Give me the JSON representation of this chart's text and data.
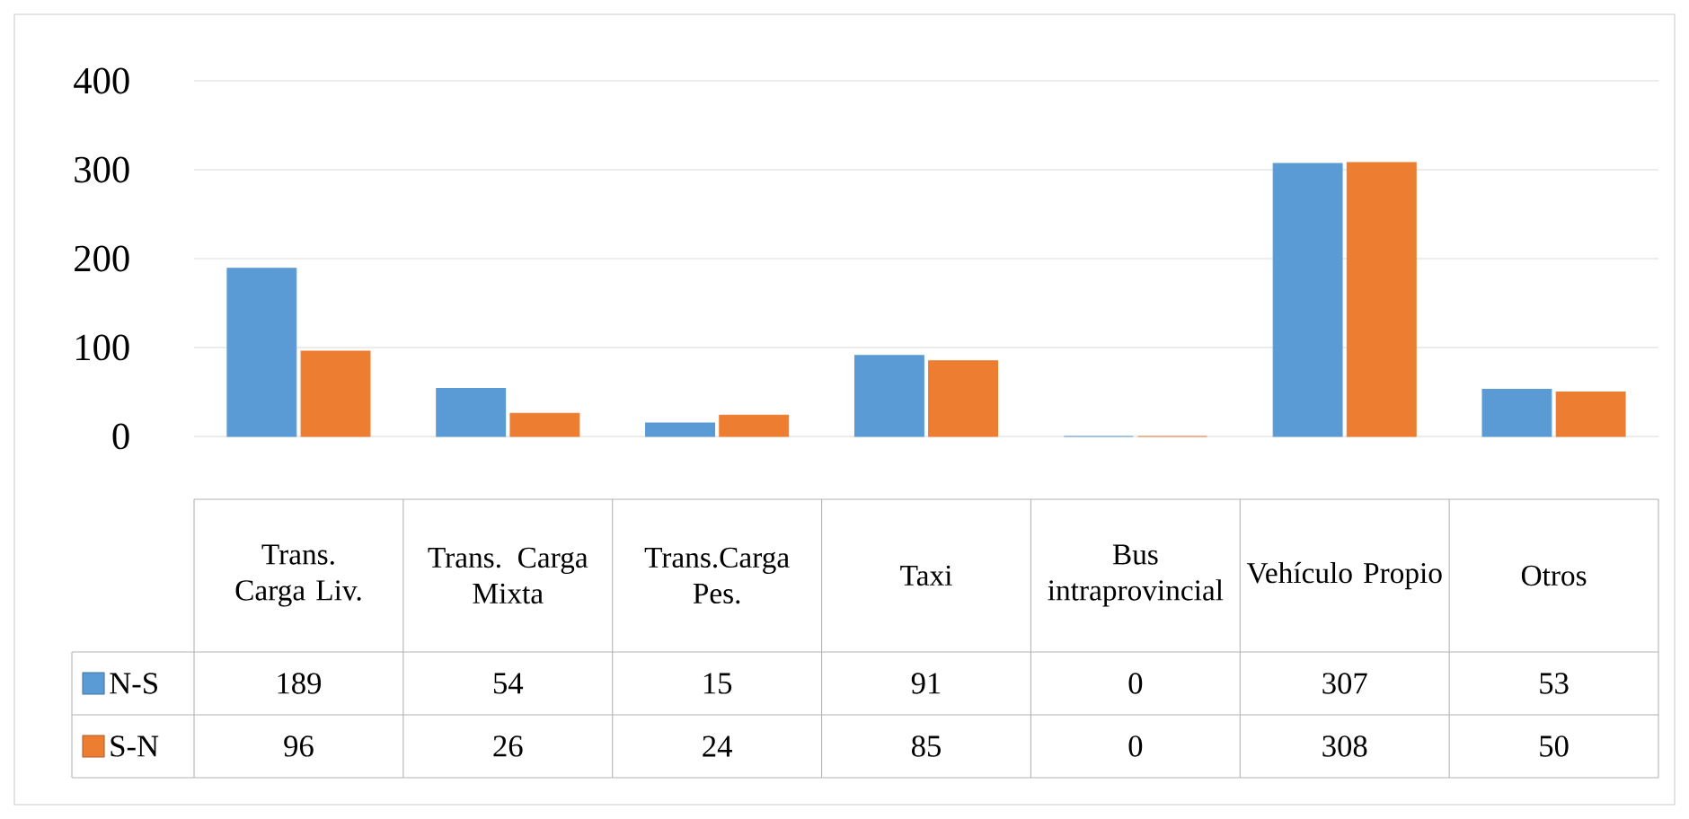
{
  "chart_data": {
    "type": "bar",
    "categories": [
      "Trans. Carga Liv.",
      "Trans. Carga Mixta",
      "Trans.Carga Pes.",
      "Taxi",
      "Bus intraprovincial",
      "Vehículo Propio",
      "Otros"
    ],
    "series": [
      {
        "name": "N-S",
        "color": "#5b9bd5",
        "values": [
          189,
          54,
          15,
          91,
          0,
          307,
          53
        ]
      },
      {
        "name": "S-N",
        "color": "#ed7d31",
        "values": [
          96,
          26,
          24,
          85,
          0,
          308,
          50
        ]
      }
    ],
    "ylim": [
      0,
      400
    ],
    "yticks": [
      0,
      100,
      200,
      300,
      400
    ],
    "grid": "y",
    "legend": "bottom",
    "data_labels": true
  }
}
